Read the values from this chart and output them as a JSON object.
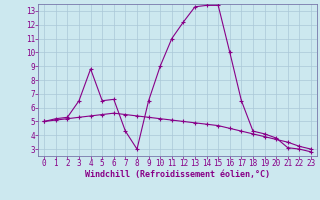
{
  "xlabel": "Windchill (Refroidissement éolien,°C)",
  "background_color": "#cce8ef",
  "grid_color": "#aac8d8",
  "line_color": "#880088",
  "spine_color": "#7777aa",
  "xlim": [
    -0.5,
    23.5
  ],
  "ylim": [
    2.5,
    13.5
  ],
  "yticks": [
    3,
    4,
    5,
    6,
    7,
    8,
    9,
    10,
    11,
    12,
    13
  ],
  "xticks": [
    0,
    1,
    2,
    3,
    4,
    5,
    6,
    7,
    8,
    9,
    10,
    11,
    12,
    13,
    14,
    15,
    16,
    17,
    18,
    19,
    20,
    21,
    22,
    23
  ],
  "line1_x": [
    0,
    1,
    2,
    3,
    4,
    5,
    6,
    7,
    8,
    9,
    10,
    11,
    12,
    13,
    14,
    15,
    16,
    17,
    18,
    19,
    20,
    21,
    22,
    23
  ],
  "line1_y": [
    5.0,
    5.2,
    5.3,
    6.5,
    8.8,
    6.5,
    6.6,
    4.3,
    3.0,
    6.5,
    9.0,
    11.0,
    12.2,
    13.3,
    13.4,
    13.4,
    10.0,
    6.5,
    4.3,
    4.1,
    3.8,
    3.1,
    3.0,
    2.8
  ],
  "line2_x": [
    0,
    1,
    2,
    3,
    4,
    5,
    6,
    7,
    8,
    9,
    10,
    11,
    12,
    13,
    14,
    15,
    16,
    17,
    18,
    19,
    20,
    21,
    22,
    23
  ],
  "line2_y": [
    5.0,
    5.1,
    5.2,
    5.3,
    5.4,
    5.5,
    5.6,
    5.5,
    5.4,
    5.3,
    5.2,
    5.1,
    5.0,
    4.9,
    4.8,
    4.7,
    4.5,
    4.3,
    4.1,
    3.9,
    3.7,
    3.5,
    3.2,
    3.0
  ],
  "tick_fontsize": 5.5,
  "xlabel_fontsize": 6.0,
  "marker_size": 2.5,
  "line_width": 0.8
}
